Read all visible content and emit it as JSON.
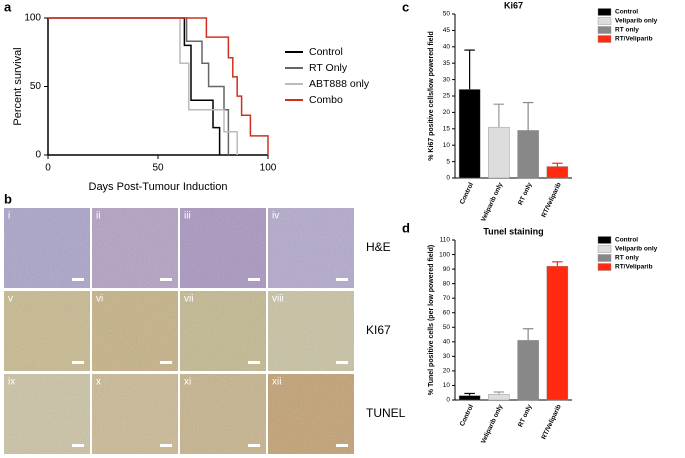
{
  "panels": [
    "a",
    "b",
    "c",
    "d"
  ],
  "chart_data": [
    {
      "type": "line",
      "xlabel": "Days Post-Tumour Induction",
      "ylabel": "Percent survival",
      "xlim": [
        0,
        100
      ],
      "ylim": [
        0,
        100
      ],
      "xticks": [
        0,
        50,
        100
      ],
      "yticks": [
        0,
        50,
        100
      ],
      "series": [
        {
          "name": "Control",
          "color": "#000000",
          "x": [
            0,
            62,
            65,
            75,
            78
          ],
          "values": [
            100,
            80,
            40,
            20,
            0
          ]
        },
        {
          "name": "RT Only",
          "color": "#666666",
          "x": [
            0,
            63,
            70,
            73,
            80,
            82
          ],
          "values": [
            100,
            83,
            67,
            50,
            33,
            0
          ]
        },
        {
          "name": "ABT888 only",
          "color": "#bbbbbb",
          "x": [
            0,
            60,
            64,
            80,
            86
          ],
          "values": [
            100,
            67,
            33,
            17,
            0
          ]
        },
        {
          "name": "Combo",
          "color": "#d03020",
          "x": [
            0,
            72,
            82,
            84,
            86,
            88,
            92,
            100
          ],
          "values": [
            100,
            86,
            71,
            57,
            43,
            29,
            14,
            0
          ]
        }
      ]
    },
    {
      "type": "bar",
      "title": "Ki67",
      "ylabel": "% Ki67 positive cells/low powered field",
      "categories": [
        "Control",
        "Veliparib only",
        "RT only",
        "RT/Veliparib"
      ],
      "values": [
        27,
        15.5,
        14.5,
        3.5
      ],
      "errors": [
        12,
        7,
        8.5,
        1
      ],
      "colors": [
        "#000000",
        "#dddddd",
        "#888888",
        "#ff2a10"
      ],
      "ylim": [
        0,
        50
      ],
      "yticks": [
        0,
        5,
        10,
        15,
        20,
        25,
        30,
        35,
        40,
        45,
        50
      ]
    },
    {
      "type": "bar",
      "title": "Tunel staining",
      "ylabel": "% Tunel positive cells (per low powered field)",
      "categories": [
        "Control",
        "Veliparib only",
        "RT only",
        "RT/Veliparib"
      ],
      "values": [
        3,
        4,
        41,
        92
      ],
      "errors": [
        1.5,
        1.5,
        8,
        3
      ],
      "colors": [
        "#000000",
        "#dddddd",
        "#888888",
        "#ff2a10"
      ],
      "ylim": [
        0,
        110
      ],
      "yticks": [
        0,
        10,
        20,
        30,
        40,
        50,
        60,
        70,
        80,
        90,
        100,
        110
      ]
    }
  ],
  "micrographs": {
    "rows": [
      {
        "label": "H&E",
        "panels": [
          "i",
          "ii",
          "iii",
          "iv"
        ]
      },
      {
        "label": "KI67",
        "panels": [
          "v",
          "vi",
          "vii",
          "viii"
        ]
      },
      {
        "label": "TUNEL",
        "panels": [
          "ix",
          "x",
          "xi",
          "xii"
        ]
      }
    ]
  }
}
